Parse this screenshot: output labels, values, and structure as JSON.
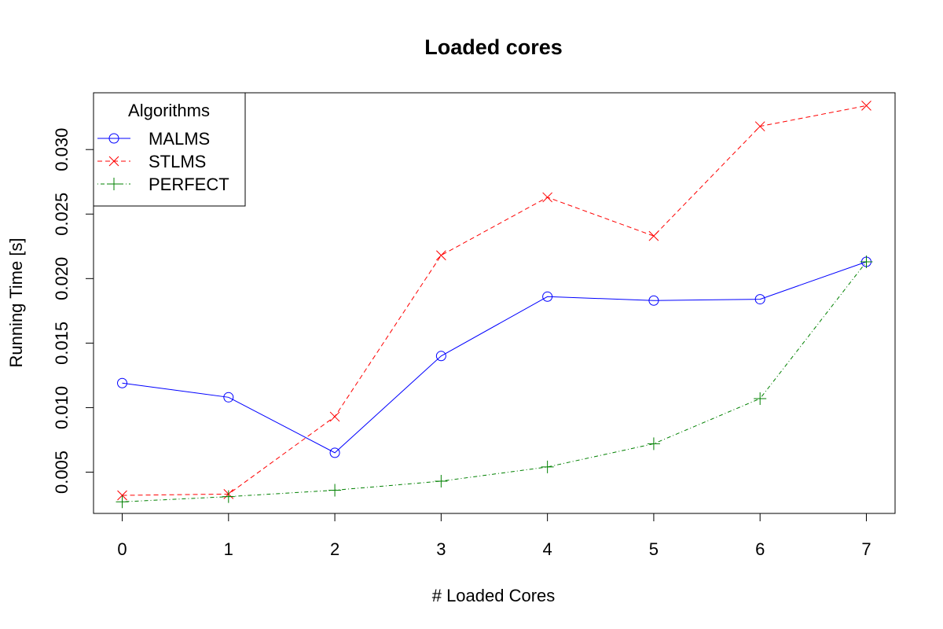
{
  "chart_data": {
    "type": "line",
    "title": "Loaded cores",
    "xlabel": "# Loaded Cores",
    "ylabel": "Running Time [s]",
    "x": [
      0,
      1,
      2,
      3,
      4,
      5,
      6,
      7
    ],
    "xticks": [
      "0",
      "1",
      "2",
      "3",
      "4",
      "5",
      "6",
      "7"
    ],
    "yticks": [
      "0.005",
      "0.010",
      "0.015",
      "0.020",
      "0.025",
      "0.030"
    ],
    "ytick_values": [
      0.005,
      0.01,
      0.015,
      0.02,
      0.025,
      0.03
    ],
    "xlim": [
      -0.27,
      7.27
    ],
    "ylim": [
      0.0018,
      0.0344
    ],
    "grid": false,
    "legend": {
      "title": "Algorithms",
      "placement": "top-left"
    },
    "series": [
      {
        "name": "MALMS",
        "color": "#0000ff",
        "marker": "circle",
        "line_style": "solid",
        "values": [
          0.0119,
          0.0108,
          0.0065,
          0.014,
          0.0186,
          0.0183,
          0.0184,
          0.0213
        ]
      },
      {
        "name": "STLMS",
        "color": "#ff0000",
        "marker": "cross",
        "line_style": "dashed",
        "values": [
          0.0032,
          0.0033,
          0.0093,
          0.0218,
          0.0263,
          0.0233,
          0.0318,
          0.0334
        ]
      },
      {
        "name": "PERFECT",
        "color": "#008000",
        "marker": "plus",
        "line_style": "dotdash",
        "values": [
          0.0027,
          0.0031,
          0.0036,
          0.0043,
          0.0054,
          0.0072,
          0.0107,
          0.0213
        ]
      }
    ]
  }
}
